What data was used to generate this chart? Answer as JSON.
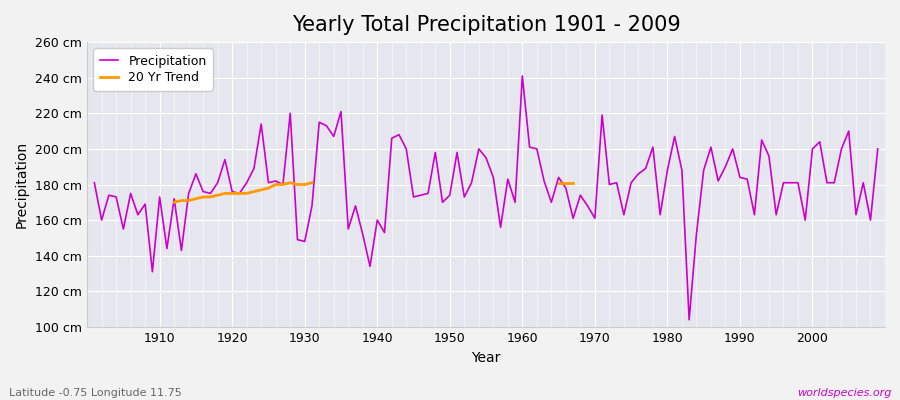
{
  "title": "Yearly Total Precipitation 1901 - 2009",
  "xlabel": "Year",
  "ylabel": "Precipitation",
  "source_label": "worldspecies.org",
  "coord_label": "Latitude -0.75 Longitude 11.75",
  "ylim": [
    100,
    260
  ],
  "yticks": [
    100,
    120,
    140,
    160,
    180,
    200,
    220,
    240,
    260
  ],
  "ytick_labels": [
    "100 cm",
    "120 cm",
    "140 cm",
    "160 cm",
    "180 cm",
    "200 cm",
    "220 cm",
    "240 cm",
    "260 cm"
  ],
  "xlim": [
    1900,
    2010
  ],
  "years": [
    1901,
    1902,
    1903,
    1904,
    1905,
    1906,
    1907,
    1908,
    1909,
    1910,
    1911,
    1912,
    1913,
    1914,
    1915,
    1916,
    1917,
    1918,
    1919,
    1920,
    1921,
    1922,
    1923,
    1924,
    1925,
    1926,
    1927,
    1928,
    1929,
    1930,
    1931,
    1932,
    1933,
    1934,
    1935,
    1936,
    1937,
    1938,
    1939,
    1940,
    1941,
    1942,
    1943,
    1944,
    1945,
    1946,
    1947,
    1948,
    1949,
    1950,
    1951,
    1952,
    1953,
    1954,
    1955,
    1956,
    1957,
    1958,
    1959,
    1960,
    1961,
    1962,
    1963,
    1964,
    1965,
    1966,
    1967,
    1968,
    1969,
    1970,
    1971,
    1972,
    1973,
    1974,
    1975,
    1976,
    1977,
    1978,
    1979,
    1980,
    1981,
    1982,
    1983,
    1984,
    1985,
    1986,
    1987,
    1988,
    1989,
    1990,
    1991,
    1992,
    1993,
    1994,
    1995,
    1996,
    1997,
    1998,
    1999,
    2000,
    2001,
    2002,
    2003,
    2004,
    2005,
    2006,
    2007,
    2008,
    2009
  ],
  "precip": [
    181,
    160,
    174,
    173,
    155,
    175,
    163,
    169,
    131,
    173,
    144,
    172,
    143,
    175,
    186,
    176,
    175,
    181,
    194,
    176,
    175,
    181,
    189,
    214,
    181,
    182,
    180,
    220,
    149,
    148,
    168,
    215,
    213,
    207,
    221,
    155,
    168,
    152,
    134,
    160,
    153,
    206,
    208,
    200,
    173,
    174,
    175,
    198,
    170,
    174,
    198,
    173,
    181,
    200,
    195,
    184,
    156,
    183,
    170,
    241,
    201,
    200,
    182,
    170,
    184,
    178,
    161,
    174,
    168,
    161,
    219,
    180,
    181,
    163,
    181,
    186,
    189,
    201,
    163,
    188,
    207,
    188,
    104,
    152,
    188,
    201,
    182,
    190,
    200,
    184,
    183,
    163,
    205,
    196,
    163,
    181,
    181,
    181,
    160,
    200,
    204,
    181,
    181,
    200,
    210,
    163,
    181,
    160,
    200
  ],
  "trend_seg1_years": [
    1912,
    1913,
    1914,
    1915,
    1916,
    1917,
    1918,
    1919,
    1920,
    1921,
    1922,
    1923,
    1924,
    1925,
    1926,
    1927,
    1928,
    1929,
    1930,
    1931
  ],
  "trend_seg1_values": [
    170,
    171,
    171,
    172,
    173,
    173,
    174,
    175,
    175,
    175,
    175,
    176,
    177,
    178,
    180,
    180,
    181,
    180,
    180,
    181
  ],
  "trend_seg2_years": [
    1965,
    1966,
    1967
  ],
  "trend_seg2_values": [
    181,
    181,
    181
  ],
  "precip_color": "#cc00cc",
  "trend_color": "#ff9900",
  "bg_color": "#f2f2f2",
  "plot_bg_color": "#e6e6ee",
  "grid_color": "#ffffff",
  "title_fontsize": 15,
  "axis_label_fontsize": 10,
  "tick_fontsize": 9,
  "coord_label_color": "#666666",
  "source_label_color": "#cc00cc"
}
